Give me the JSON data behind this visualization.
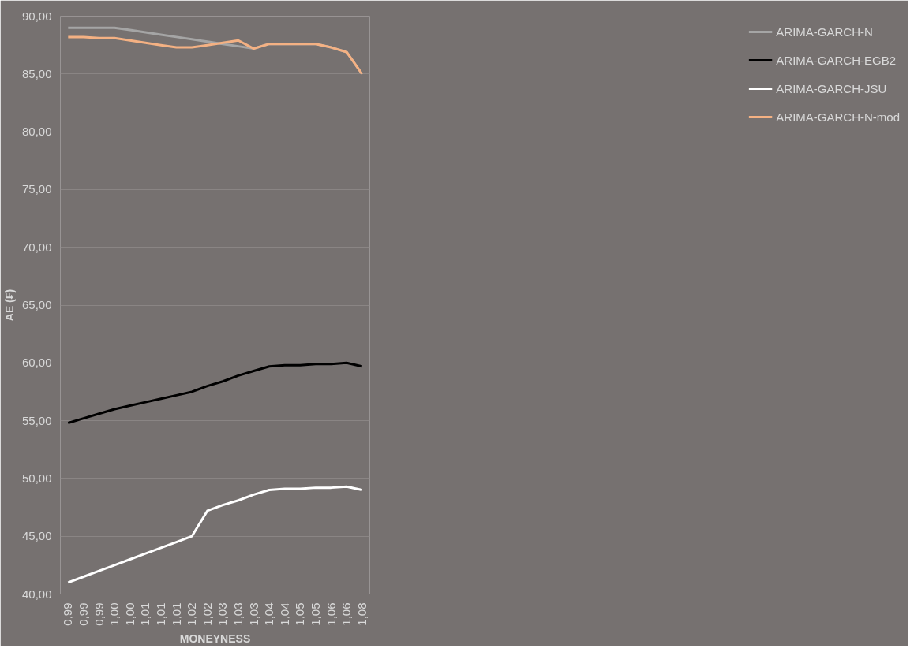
{
  "chart_data": {
    "type": "line",
    "xlabel": "MONEYNESS",
    "ylabel": "AE (₣)",
    "categories": [
      "0,99",
      "0,99",
      "0,99",
      "1,00",
      "1,00",
      "1,01",
      "1,01",
      "1,01",
      "1,02",
      "1,02",
      "1,03",
      "1,03",
      "1,03",
      "1,04",
      "1,04",
      "1,05",
      "1,05",
      "1,06",
      "1,06",
      "1,08"
    ],
    "series": [
      {
        "name": "ARIMA-GARCH-N",
        "color": "#a5a5a5",
        "values": [
          89.0,
          89.0,
          89.0,
          89.0,
          88.8,
          88.6,
          88.4,
          88.2,
          88.0,
          87.8,
          87.6,
          87.4,
          87.2,
          87.6,
          87.6,
          87.6,
          87.6,
          87.3,
          86.9,
          85.0
        ]
      },
      {
        "name": "ARIMA-GARCH-EGB2",
        "color": "#000000",
        "values": [
          54.8,
          55.2,
          55.6,
          56.0,
          56.3,
          56.6,
          56.9,
          57.2,
          57.5,
          58.0,
          58.4,
          58.9,
          59.3,
          59.7,
          59.8,
          59.8,
          59.9,
          59.9,
          60.0,
          59.7
        ]
      },
      {
        "name": "ARIMA-GARCH-JSU",
        "color": "#ffffff",
        "values": [
          41.0,
          41.5,
          42.0,
          42.5,
          43.0,
          43.5,
          44.0,
          44.5,
          45.0,
          47.2,
          47.7,
          48.1,
          48.6,
          49.0,
          49.1,
          49.1,
          49.2,
          49.2,
          49.3,
          49.0
        ]
      },
      {
        "name": "ARIMA-GARCH-N-mod",
        "color": "#f4b183",
        "values": [
          88.2,
          88.2,
          88.1,
          88.1,
          87.9,
          87.7,
          87.5,
          87.3,
          87.3,
          87.5,
          87.7,
          87.9,
          87.2,
          87.6,
          87.6,
          87.6,
          87.6,
          87.3,
          86.9,
          85.0
        ]
      }
    ],
    "ylim": [
      40,
      90
    ],
    "yticks": [
      {
        "value": 40,
        "label": "40,00"
      },
      {
        "value": 45,
        "label": "45,00"
      },
      {
        "value": 50,
        "label": "50,00"
      },
      {
        "value": 55,
        "label": "55,00"
      },
      {
        "value": 60,
        "label": "60,00"
      },
      {
        "value": 65,
        "label": "65,00"
      },
      {
        "value": 70,
        "label": "70,00"
      },
      {
        "value": 75,
        "label": "75,00"
      },
      {
        "value": 80,
        "label": "80,00"
      },
      {
        "value": 85,
        "label": "85,00"
      },
      {
        "value": 90,
        "label": "90,00"
      }
    ],
    "grid": "y",
    "legend": "right",
    "marker": "none",
    "line_style": "solid"
  }
}
